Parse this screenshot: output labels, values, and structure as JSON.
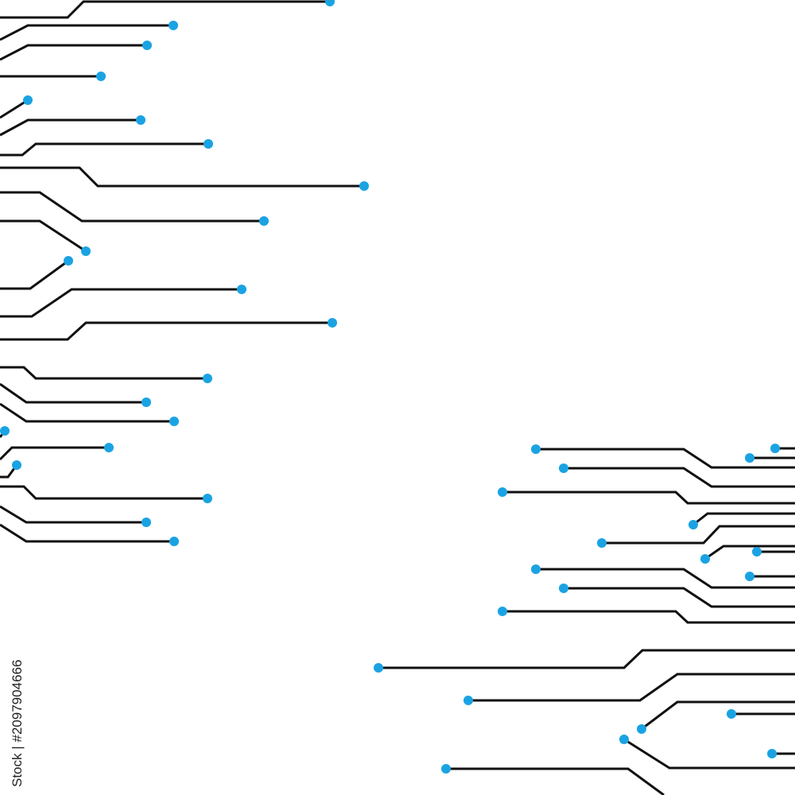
{
  "watermark": {
    "credit": "Stock | #2097904666"
  }
}
